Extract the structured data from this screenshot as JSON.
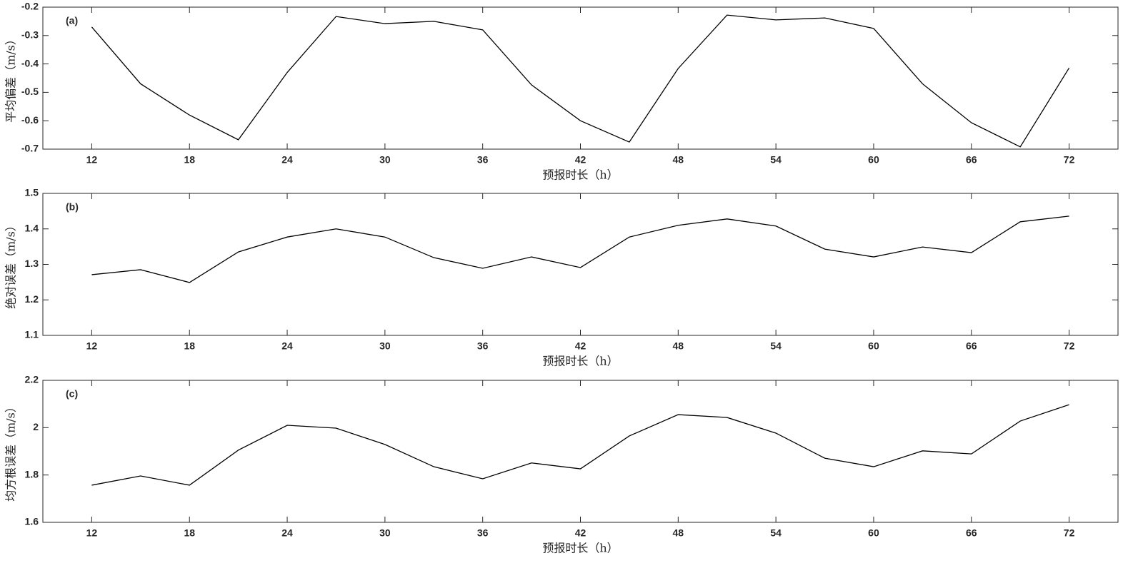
{
  "chart_data": [
    {
      "type": "line",
      "panel_label": "(a)",
      "y_label": "平均偏差（m/s）",
      "x_label": "预报时长（h）",
      "x": [
        12,
        15,
        18,
        21,
        24,
        27,
        30,
        33,
        36,
        39,
        42,
        45,
        48,
        51,
        54,
        57,
        60,
        63,
        66,
        69,
        72
      ],
      "values": [
        -0.27,
        -0.47,
        -0.58,
        -0.667,
        -0.43,
        -0.233,
        -0.258,
        -0.25,
        -0.28,
        -0.474,
        -0.6,
        -0.675,
        -0.416,
        -0.228,
        -0.245,
        -0.238,
        -0.275,
        -0.47,
        -0.607,
        -0.692,
        -0.414
      ],
      "color": "#000000",
      "xlim": [
        9,
        75
      ],
      "xticks": [
        12,
        18,
        24,
        30,
        36,
        42,
        48,
        54,
        60,
        66,
        72
      ],
      "ylim": [
        -0.7,
        -0.2
      ],
      "yticks": [
        -0.7,
        -0.6,
        -0.5,
        -0.4,
        -0.3,
        -0.2
      ]
    },
    {
      "type": "line",
      "panel_label": "(b)",
      "y_label": "绝对误差（m/s）",
      "x_label": "预报时长（h）",
      "x": [
        12,
        15,
        18,
        21,
        24,
        27,
        30,
        33,
        36,
        39,
        42,
        45,
        48,
        51,
        54,
        57,
        60,
        63,
        66,
        69,
        72
      ],
      "values": [
        1.271,
        1.285,
        1.249,
        1.335,
        1.377,
        1.4,
        1.377,
        1.319,
        1.289,
        1.321,
        1.291,
        1.377,
        1.41,
        1.428,
        1.408,
        1.343,
        1.321,
        1.349,
        1.333,
        1.42,
        1.436
      ],
      "color": "#000000",
      "xlim": [
        9,
        75
      ],
      "xticks": [
        12,
        18,
        24,
        30,
        36,
        42,
        48,
        54,
        60,
        66,
        72
      ],
      "ylim": [
        1.1,
        1.5
      ],
      "yticks": [
        1.1,
        1.2,
        1.3,
        1.4,
        1.5
      ]
    },
    {
      "type": "line",
      "panel_label": "(c)",
      "y_label": "均方根误差（m/s）",
      "x_label": "预报时长（h）",
      "x": [
        12,
        15,
        18,
        21,
        24,
        27,
        30,
        33,
        36,
        39,
        42,
        45,
        48,
        51,
        54,
        57,
        60,
        63,
        66,
        69,
        72
      ],
      "values": [
        1.757,
        1.796,
        1.757,
        1.905,
        2.01,
        1.998,
        1.929,
        1.835,
        1.784,
        1.851,
        1.826,
        1.965,
        2.055,
        2.043,
        1.977,
        1.871,
        1.835,
        1.902,
        1.889,
        2.028,
        2.097
      ],
      "color": "#000000",
      "xlim": [
        9,
        75
      ],
      "xticks": [
        12,
        18,
        24,
        30,
        36,
        42,
        48,
        54,
        60,
        66,
        72
      ],
      "ylim": [
        1.6,
        2.2
      ],
      "yticks": [
        1.6,
        1.8,
        2,
        2.2
      ]
    }
  ]
}
